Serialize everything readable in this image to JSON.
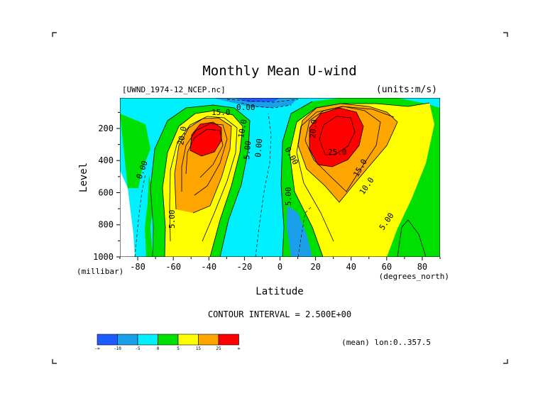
{
  "chart_data": {
    "type": "heatmap",
    "title": "Monthly Mean U-wind",
    "dataset": "[UWND_1974-12_NCEP.nc]",
    "units": "(units:m/s)",
    "xlabel": "Latitude",
    "xunits": "(degrees_north)",
    "ylabel": "Level",
    "yunits": "(millibar)",
    "x_ticks": [
      "-80",
      "-60",
      "-40",
      "-20",
      "0",
      "20",
      "40",
      "60",
      "80"
    ],
    "y_ticks": [
      "200",
      "400",
      "600",
      "800",
      "1000"
    ],
    "xlim": [
      -90,
      90
    ],
    "ylim": [
      1000,
      10
    ],
    "y_reversed": true,
    "contour_interval": "CONTOUR INTERVAL = 2.500E+00",
    "mean_note": "(mean) lon:0..357.5",
    "contour_labels": [
      "15.0",
      "0.00",
      "20.0",
      "10.0",
      "5.00",
      "0.00",
      "0.00",
      "5.00",
      "5.00",
      "0.00",
      "20.0",
      "25.0",
      "15.0",
      "10.0",
      "5.00"
    ],
    "jets": [
      {
        "hemisphere": "south",
        "lat": -43,
        "level": 250,
        "max": 27
      },
      {
        "hemisphere": "north",
        "lat": 32,
        "level": 200,
        "max": 30
      }
    ],
    "colorbar": {
      "labels": [
        "-∞",
        "-10",
        "-5",
        "0",
        "5",
        "15",
        "25",
        "∞"
      ],
      "colors": [
        "#1e5cff",
        "#1aa0ea",
        "#00f0ff",
        "#00e000",
        "#ffff00",
        "#ffa500",
        "#ff0000"
      ]
    }
  }
}
